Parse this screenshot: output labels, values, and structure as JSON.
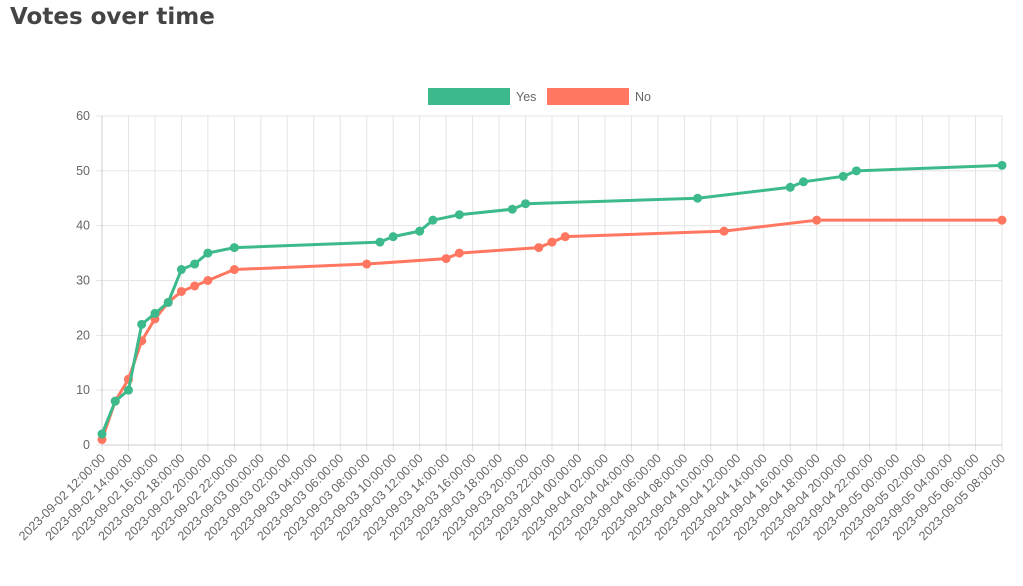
{
  "page": {
    "title": "Votes over time"
  },
  "chart_data": {
    "type": "line",
    "title": "",
    "xlabel": "",
    "ylabel": "",
    "ylim": [
      0,
      60
    ],
    "yticks": [
      0,
      10,
      20,
      30,
      40,
      50,
      60
    ],
    "xlim": [
      "2023-09-02 12:00:00",
      "2023-09-05 08:00:00"
    ],
    "xtick_interval_hours": 2,
    "grid": true,
    "legend_position": "top",
    "series": [
      {
        "name": "Yes",
        "color": "#3cba8b",
        "points": [
          [
            "2023-09-02 12:00:00",
            2
          ],
          [
            "2023-09-02 13:00:00",
            8
          ],
          [
            "2023-09-02 14:00:00",
            10
          ],
          [
            "2023-09-02 15:00:00",
            22
          ],
          [
            "2023-09-02 16:00:00",
            24
          ],
          [
            "2023-09-02 17:00:00",
            26
          ],
          [
            "2023-09-02 18:00:00",
            32
          ],
          [
            "2023-09-02 19:00:00",
            33
          ],
          [
            "2023-09-02 20:00:00",
            35
          ],
          [
            "2023-09-02 22:00:00",
            36
          ],
          [
            "2023-09-03 09:00:00",
            37
          ],
          [
            "2023-09-03 10:00:00",
            38
          ],
          [
            "2023-09-03 12:00:00",
            39
          ],
          [
            "2023-09-03 13:00:00",
            41
          ],
          [
            "2023-09-03 15:00:00",
            42
          ],
          [
            "2023-09-03 19:00:00",
            43
          ],
          [
            "2023-09-03 20:00:00",
            44
          ],
          [
            "2023-09-04 09:00:00",
            45
          ],
          [
            "2023-09-04 16:00:00",
            47
          ],
          [
            "2023-09-04 17:00:00",
            48
          ],
          [
            "2023-09-04 20:00:00",
            49
          ],
          [
            "2023-09-04 21:00:00",
            50
          ],
          [
            "2023-09-05 08:00:00",
            51
          ]
        ]
      },
      {
        "name": "No",
        "color": "#ff7760",
        "points": [
          [
            "2023-09-02 12:00:00",
            1
          ],
          [
            "2023-09-02 13:00:00",
            8
          ],
          [
            "2023-09-02 14:00:00",
            12
          ],
          [
            "2023-09-02 15:00:00",
            19
          ],
          [
            "2023-09-02 16:00:00",
            23
          ],
          [
            "2023-09-02 17:00:00",
            26
          ],
          [
            "2023-09-02 18:00:00",
            28
          ],
          [
            "2023-09-02 19:00:00",
            29
          ],
          [
            "2023-09-02 20:00:00",
            30
          ],
          [
            "2023-09-02 22:00:00",
            32
          ],
          [
            "2023-09-03 08:00:00",
            33
          ],
          [
            "2023-09-03 14:00:00",
            34
          ],
          [
            "2023-09-03 15:00:00",
            35
          ],
          [
            "2023-09-03 21:00:00",
            36
          ],
          [
            "2023-09-03 22:00:00",
            37
          ],
          [
            "2023-09-03 23:00:00",
            38
          ],
          [
            "2023-09-04 11:00:00",
            39
          ],
          [
            "2023-09-04 18:00:00",
            41
          ],
          [
            "2023-09-05 08:00:00",
            41
          ]
        ]
      }
    ]
  }
}
